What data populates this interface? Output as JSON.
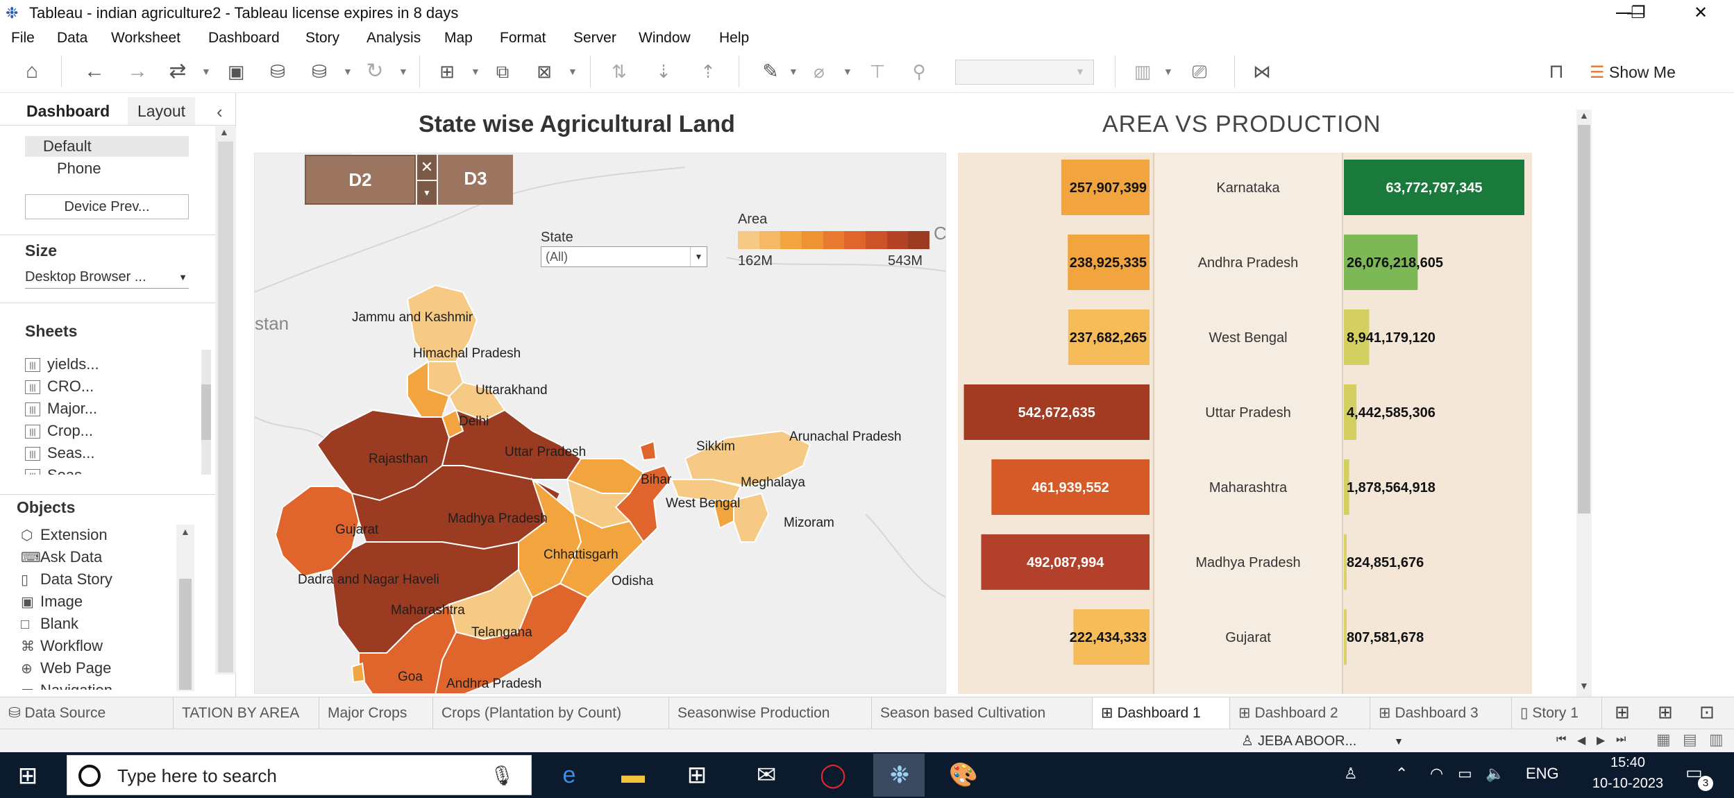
{
  "window": {
    "title": "Tableau - indian agriculture2 - Tableau license expires in 8 days",
    "minimize": "—",
    "restore": "❐",
    "close": "✕"
  },
  "menu": [
    "File",
    "Data",
    "Worksheet",
    "Dashboard",
    "Story",
    "Analysis",
    "Map",
    "Format",
    "Server",
    "Window",
    "Help"
  ],
  "toolbar": {
    "show_me": "Show Me"
  },
  "left_pane": {
    "tabs": [
      "Dashboard",
      "Layout"
    ],
    "collapse": "‹",
    "devices": [
      "Default",
      "Phone"
    ],
    "device_preview_button": "Device Prev...",
    "size_header": "Size",
    "size_value": "Desktop Browser ...",
    "sheets_header": "Sheets",
    "sheets": [
      "yields...",
      "CRO...",
      "Major...",
      "Crop...",
      "Seas...",
      "Seas..."
    ],
    "objects_header": "Objects",
    "objects": [
      {
        "label": "Extension",
        "icon": "⬡"
      },
      {
        "label": "Ask Data",
        "icon": "⌨"
      },
      {
        "label": "Data Story",
        "icon": "▯"
      },
      {
        "label": "Image",
        "icon": "▣"
      },
      {
        "label": "Blank",
        "icon": "□"
      },
      {
        "label": "Workflow",
        "icon": "⌘"
      },
      {
        "label": "Web Page",
        "icon": "⊕"
      },
      {
        "label": "Navigation",
        "icon": "▭"
      }
    ]
  },
  "dashboard": {
    "map_title": "State wise Agricultural Land",
    "chart_title": "AREA VS PRODUCTION",
    "drill": {
      "left": "D2",
      "right": "D3"
    },
    "filter": {
      "label": "State",
      "value": "(All)"
    },
    "legend": {
      "title": "Area",
      "min_label": "162M",
      "max_label": "543M"
    },
    "map_bg_labels": [
      "stan",
      "Cl"
    ],
    "map_labels": [
      "Jammu and Kashmir",
      "Himachal Pradesh",
      "Uttarakhand",
      "Delhi",
      "Rajasthan",
      "Uttar Pradesh",
      "Sikkim",
      "Arunachal Pradesh",
      "Bihar",
      "Meghalaya",
      "West Bengal",
      "Mizoram",
      "Gujarat",
      "Madhya Pradesh",
      "Chhattisgarh",
      "Odisha",
      "Dadra and Nagar Haveli",
      "Maharashtra",
      "Telangana",
      "Goa",
      "Andhra Pradesh"
    ]
  },
  "chart_data": {
    "type": "bar",
    "title": "AREA VS PRODUCTION",
    "categories": [
      "Karnataka",
      "Andhra Pradesh",
      "West Bengal",
      "Uttar Pradesh",
      "Maharashtra",
      "Madhya Pradesh",
      "Gujarat"
    ],
    "series": [
      {
        "values": [
          257907399,
          238925335,
          237682265,
          542672635,
          461939552,
          492087994,
          222434333
        ],
        "labels": [
          "257,907,399",
          "238,925,335",
          "237,682,265",
          "542,672,635",
          "461,939,552",
          "492,087,994",
          "222,434,333"
        ],
        "colors": [
          "#f2a53e",
          "#f2a53e",
          "#f6bc5a",
          "#a33a22",
          "#d65a27",
          "#b2402a",
          "#f6bc5a"
        ]
      },
      {
        "values": [
          63772797345,
          26076218605,
          8941179120,
          4442585306,
          1878564918,
          824851676,
          807581678
        ],
        "labels": [
          "63,772,797,345",
          "26,076,218,605",
          "8,941,179,120",
          "4,442,585,306",
          "1,878,564,918",
          "824,851,676",
          "807,581,678"
        ],
        "colors": [
          "#1a7a3c",
          "#7cb855",
          "#d3cf61",
          "#d3cf61",
          "#d3cf61",
          "#d9d35f",
          "#d9d35f"
        ]
      }
    ]
  },
  "sheet_tabs": [
    {
      "label": "Data Source",
      "icon": "⛁",
      "active": false
    },
    {
      "label": "TATION BY AREA",
      "icon": "",
      "active": false
    },
    {
      "label": "Major Crops",
      "icon": "",
      "active": false
    },
    {
      "label": "Crops (Plantation by Count)",
      "icon": "",
      "active": false
    },
    {
      "label": "Seasonwise Production",
      "icon": "",
      "active": false
    },
    {
      "label": "Season based Cultivation",
      "icon": "",
      "active": false
    },
    {
      "label": "Dashboard 1",
      "icon": "⊞",
      "active": true
    },
    {
      "label": "Dashboard 2",
      "icon": "⊞",
      "active": false
    },
    {
      "label": "Dashboard 3",
      "icon": "⊞",
      "active": false
    },
    {
      "label": "Story 1",
      "icon": "▯",
      "active": false
    }
  ],
  "status": {
    "user": "JEBA ABOOR..."
  },
  "taskbar": {
    "search_placeholder": "Type here to search",
    "lang": "ENG",
    "time": "15:40",
    "date": "10-10-2023",
    "notifications": "3"
  }
}
